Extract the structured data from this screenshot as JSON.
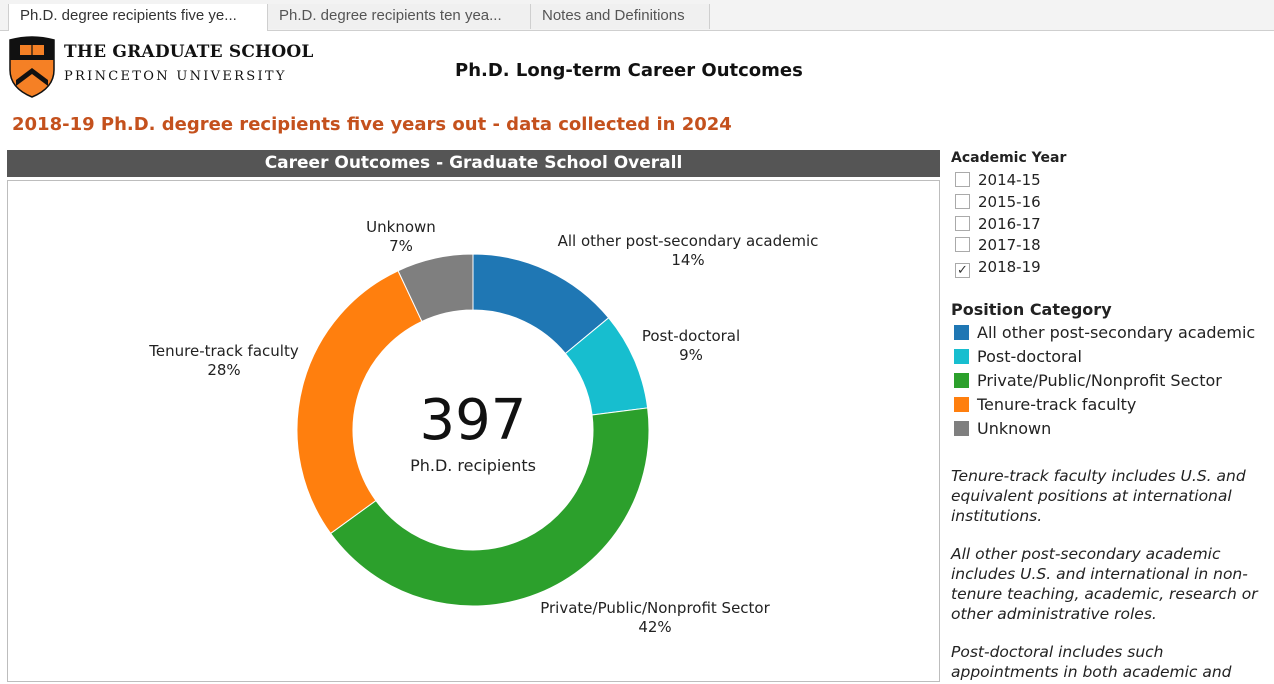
{
  "tabs": [
    {
      "label": "Ph.D. degree recipients five ye..."
    },
    {
      "label": "Ph.D. degree recipients ten yea..."
    },
    {
      "label": "Notes and Definitions"
    }
  ],
  "logo": {
    "line1": "THE GRADUATE SCHOOL",
    "line2": "PRINCETON UNIVERSITY",
    "icon": "princeton-shield-icon"
  },
  "header": {
    "title": "Ph.D. Long-term Career Outcomes",
    "subtitle": "2018-19 Ph.D. degree recipients five years out - data collected in 2024"
  },
  "panel": {
    "title": "Career Outcomes - Graduate School Overall",
    "center_value": "397",
    "center_label": "Ph.D. recipients"
  },
  "chart_data": {
    "type": "pie",
    "donut": true,
    "total": 397,
    "slices": [
      {
        "label": "All other post-secondary academic",
        "value": 14,
        "display": "14%",
        "color": "#1f77b4"
      },
      {
        "label": "Post-doctoral",
        "value": 9,
        "display": "9%",
        "color": "#17becf"
      },
      {
        "label": "Private/Public/Nonprofit Sector",
        "value": 42,
        "display": "42%",
        "color": "#2ca02c"
      },
      {
        "label": "Tenure-track faculty",
        "value": 28,
        "display": "28%",
        "color": "#ff7f0e"
      },
      {
        "label": "Unknown",
        "value": 7,
        "display": "7%",
        "color": "#7f7f7f"
      }
    ]
  },
  "filters": {
    "academic_year": {
      "title": "Academic Year",
      "options": [
        {
          "label": "2014-15",
          "checked": false
        },
        {
          "label": "2015-16",
          "checked": false
        },
        {
          "label": "2016-17",
          "checked": false
        },
        {
          "label": "2017-18",
          "checked": false
        },
        {
          "label": "2018-19",
          "checked": true
        }
      ],
      "check_mark": "✓"
    },
    "position_category": {
      "title": "Position Category",
      "items": [
        {
          "label": "All other post-secondary academic",
          "color": "#1f77b4"
        },
        {
          "label": "Post-doctoral",
          "color": "#17becf"
        },
        {
          "label": "Private/Public/Nonprofit Sector",
          "color": "#2ca02c"
        },
        {
          "label": "Tenure-track faculty",
          "color": "#ff7f0e"
        },
        {
          "label": "Unknown",
          "color": "#7f7f7f"
        }
      ]
    }
  },
  "notes": [
    "Tenure-track faculty includes U.S. and equivalent positions at international institutions.",
    "All other post-secondary academic includes U.S. and international in non-tenure teaching, academic, research or other administrative roles.",
    "Post-doctoral includes such appointments in both academic and"
  ]
}
